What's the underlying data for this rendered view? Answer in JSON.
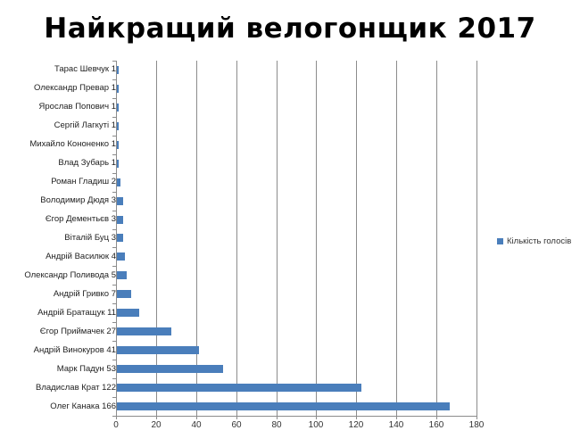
{
  "title": "Найкращий велогонщик 2017",
  "legend": {
    "label": "Кількість голосів",
    "color": "#4a7ebb"
  },
  "chart_data": {
    "type": "bar",
    "orientation": "horizontal",
    "title": "Найкращий велогонщик 2017",
    "xlabel": "",
    "ylabel": "",
    "xlim": [
      0,
      180
    ],
    "xticks": [
      0,
      20,
      40,
      60,
      80,
      100,
      120,
      140,
      160,
      180
    ],
    "grid": true,
    "legend_position": "right",
    "categories": [
      "Тарас Шевчук 1",
      "Олександр Превар 1",
      "Ярослав Попович 1",
      "Сергій Лагкуті 1",
      "Михайло Кононенко 1",
      "Влад Зубарь 1",
      "Роман Гладиш 2",
      "Володимир Дюдя 3",
      "Єгор Дементьєв 3",
      "Віталій Буц 3",
      "Андрій Василюк 4",
      "Олександр Поливода 5",
      "Андрій Гривко 7",
      "Андрій Братащук 11",
      "Єгор Приймачек 27",
      "Андрій Винокуров 41",
      "Марк Падун 53",
      "Владислав Крат 122",
      "Олег Канака 166"
    ],
    "series": [
      {
        "name": "Кількість голосів",
        "color": "#4a7ebb",
        "values": [
          1,
          1,
          1,
          1,
          1,
          1,
          2,
          3,
          3,
          3,
          4,
          5,
          7,
          11,
          27,
          41,
          53,
          122,
          166
        ]
      }
    ]
  }
}
